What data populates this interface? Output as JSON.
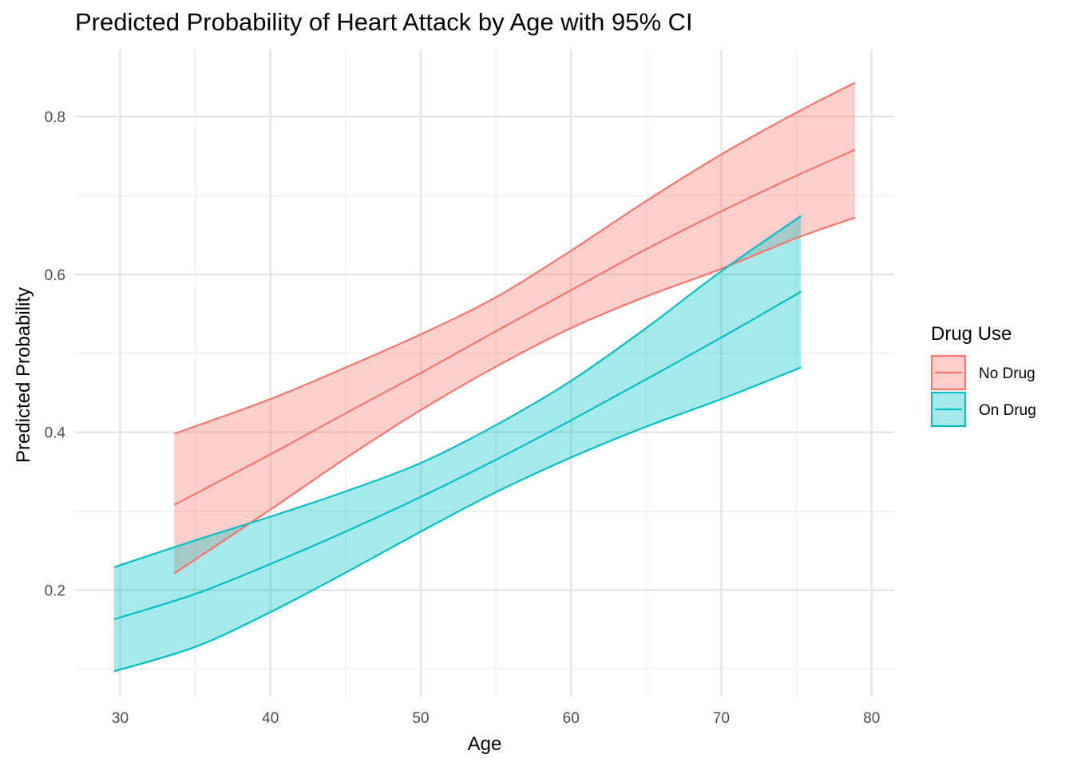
{
  "chart_data": {
    "type": "line",
    "title": "Predicted Probability of Heart Attack by Age with 95% CI",
    "xlabel": "Age",
    "ylabel": "Predicted Probability",
    "xlim": [
      27,
      81.5
    ],
    "ylim": [
      0.065,
      0.885
    ],
    "x_ticks": [
      30,
      40,
      50,
      60,
      70,
      80
    ],
    "x_tick_labels": [
      "30",
      "40",
      "50",
      "60",
      "70",
      "80"
    ],
    "y_ticks": [
      0.2,
      0.4,
      0.6,
      0.8
    ],
    "y_tick_labels": [
      "0.2",
      "0.4",
      "0.6",
      "0.8"
    ],
    "grid": true,
    "legend": {
      "title": "Drug Use",
      "position": "right"
    },
    "series": [
      {
        "name": "No Drug",
        "color": "#F8766D",
        "fill": "#F8766D",
        "x": [
          33.6,
          40,
          45,
          50,
          55,
          60,
          65,
          70,
          75,
          78.9
        ],
        "fit": [
          0.308,
          0.372,
          0.424,
          0.475,
          0.528,
          0.58,
          0.632,
          0.68,
          0.725,
          0.758
        ],
        "lower": [
          0.221,
          0.302,
          0.367,
          0.428,
          0.483,
          0.532,
          0.572,
          0.607,
          0.646,
          0.672
        ],
        "upper": [
          0.398,
          0.442,
          0.482,
          0.524,
          0.571,
          0.63,
          0.693,
          0.752,
          0.805,
          0.843
        ]
      },
      {
        "name": "On Drug",
        "color": "#00BFC4",
        "fill": "#00BFC4",
        "x": [
          29.6,
          35,
          40,
          45,
          50,
          55,
          60,
          65,
          70,
          75.3
        ],
        "fit": [
          0.163,
          0.195,
          0.233,
          0.274,
          0.318,
          0.365,
          0.415,
          0.467,
          0.52,
          0.578
        ],
        "lower": [
          0.097,
          0.128,
          0.172,
          0.222,
          0.274,
          0.324,
          0.368,
          0.407,
          0.442,
          0.482
        ],
        "upper": [
          0.229,
          0.263,
          0.293,
          0.325,
          0.361,
          0.409,
          0.465,
          0.532,
          0.604,
          0.674
        ]
      }
    ]
  }
}
